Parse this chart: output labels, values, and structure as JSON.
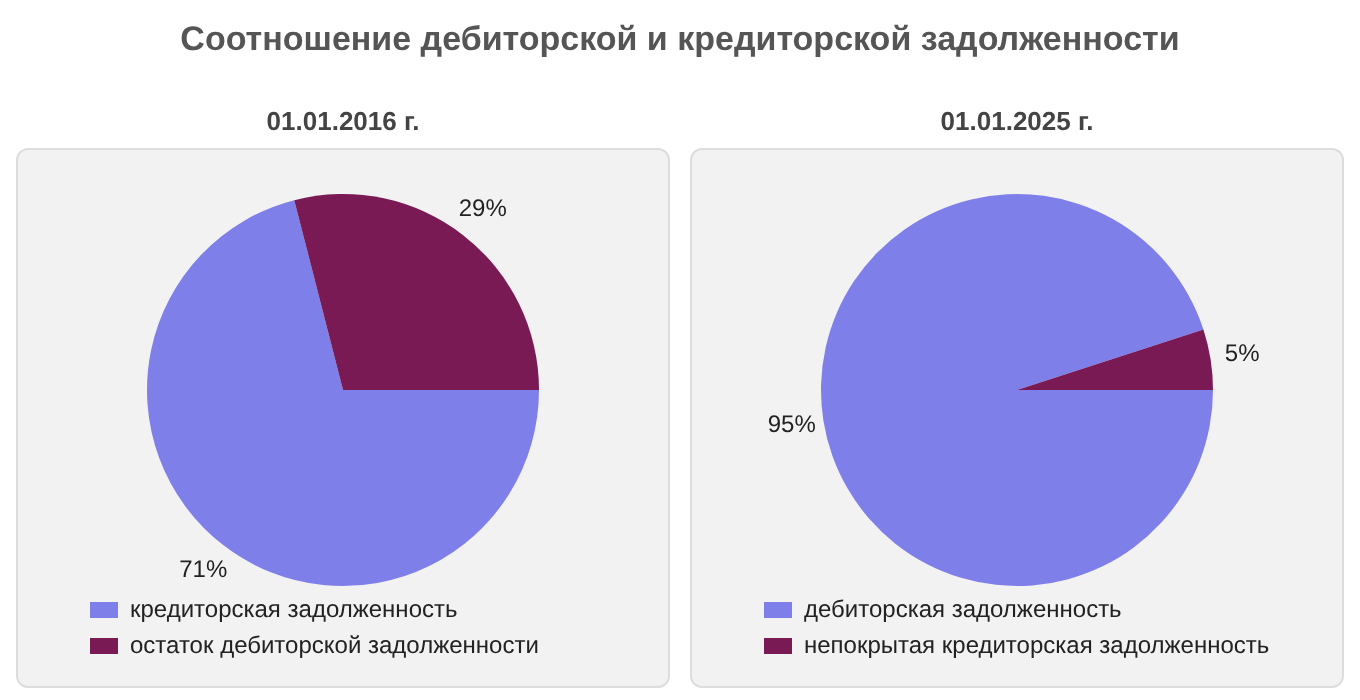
{
  "chart_data": [
    {
      "type": "pie",
      "title": "Соотношение дебиторской и кредиторской задолженности",
      "subtitle": "01.01.2016 г.",
      "categories": [
        "кредиторская задолженность",
        "остаток дебиторской задолженности"
      ],
      "values": [
        71,
        29
      ],
      "colors": [
        "#7f7fea",
        "#7a1a55"
      ],
      "value_labels": [
        "71%",
        "29%"
      ],
      "legend": "bottom"
    },
    {
      "type": "pie",
      "subtitle": "01.01.2025 г.",
      "categories": [
        "дебиторская задолженность",
        "непокрытая кредиторская задолженность"
      ],
      "values": [
        95,
        5
      ],
      "colors": [
        "#7f7fea",
        "#7a1a55"
      ],
      "value_labels": [
        "95%",
        "5%"
      ],
      "legend": "bottom"
    }
  ]
}
